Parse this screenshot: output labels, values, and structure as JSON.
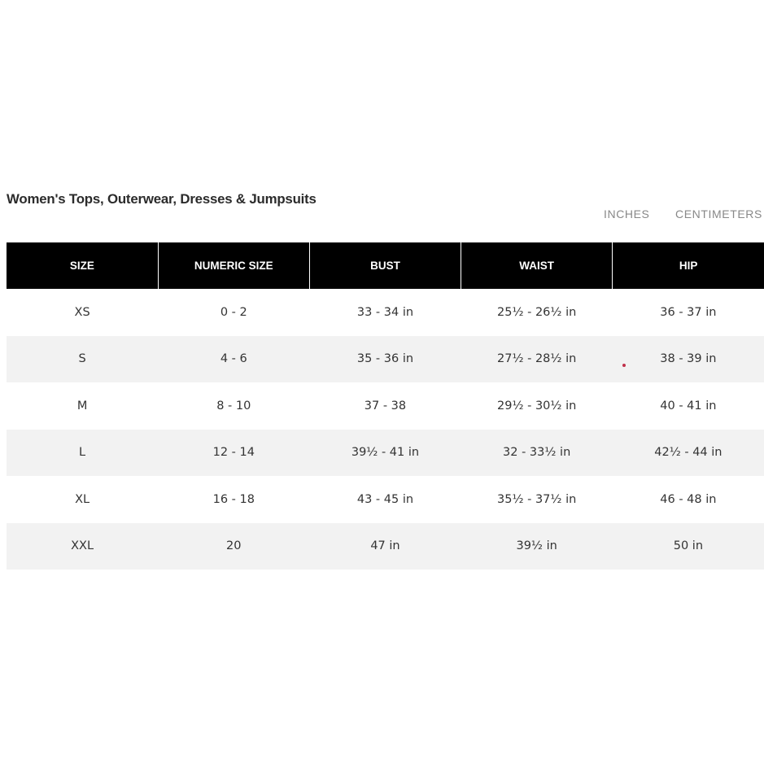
{
  "title": "Women's Tops, Outerwear, Dresses & Jumpsuits",
  "units": {
    "inches": "INCHES",
    "centimeters": "CENTIMETERS"
  },
  "table": {
    "headers": [
      "SIZE",
      "NUMERIC SIZE",
      "BUST",
      "WAIST",
      "HIP"
    ],
    "rows": [
      [
        "XS",
        "0 - 2",
        "33 - 34 in",
        "25½ - 26½ in",
        "36 - 37 in"
      ],
      [
        "S",
        "4 - 6",
        "35 - 36 in",
        "27½ - 28½ in",
        "38 - 39 in"
      ],
      [
        "M",
        "8 - 10",
        "37 - 38",
        "29½ - 30½ in",
        "40 - 41 in"
      ],
      [
        "L",
        "12 - 14",
        "39½ - 41 in",
        "32 - 33½ in",
        "42½ - 44 in"
      ],
      [
        "XL",
        "16 - 18",
        "43 - 45 in",
        "35½ - 37½ in",
        "46 - 48 in"
      ],
      [
        "XXL",
        "20",
        "47 in",
        "39½ in",
        "50 in"
      ]
    ]
  },
  "colors": {
    "header_bg": "#000000",
    "header_text": "#ffffff",
    "alt_row_bg": "#f2f2f2",
    "unit_toggle": "#888888"
  }
}
